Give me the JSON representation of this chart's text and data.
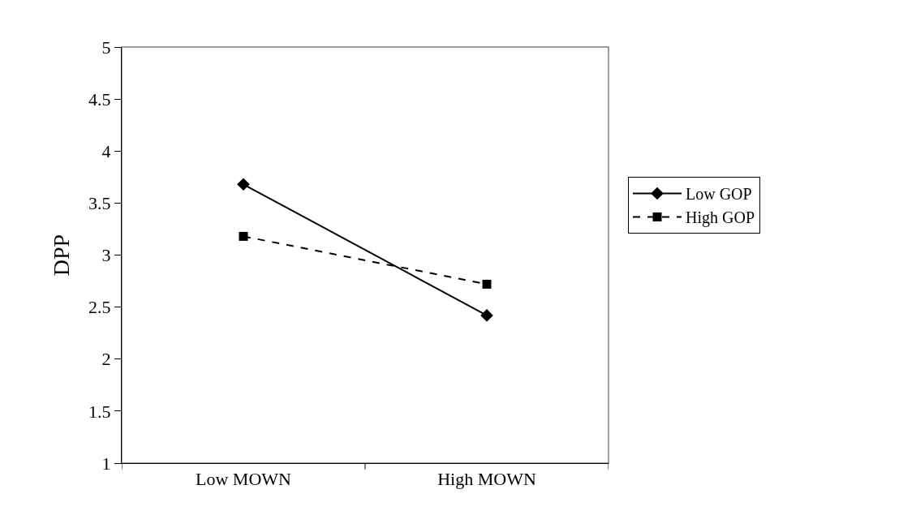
{
  "chart_data": {
    "type": "line",
    "ylabel": "DPP",
    "categories": [
      "Low MOWN",
      "High MOWN"
    ],
    "series": [
      {
        "name": "Low GOP",
        "color": "#000000",
        "values": [
          3.68,
          2.42
        ],
        "marker": "diamond",
        "line_style": "solid"
      },
      {
        "name": "High GOP",
        "color": "#000000",
        "values": [
          3.18,
          2.72
        ],
        "marker": "square",
        "line_style": "dashed"
      }
    ],
    "ylim": [
      1,
      5
    ],
    "yticks": [
      1,
      1.5,
      2,
      2.5,
      3,
      3.5,
      4,
      4.5,
      5
    ],
    "grid": false,
    "legend": "right"
  }
}
